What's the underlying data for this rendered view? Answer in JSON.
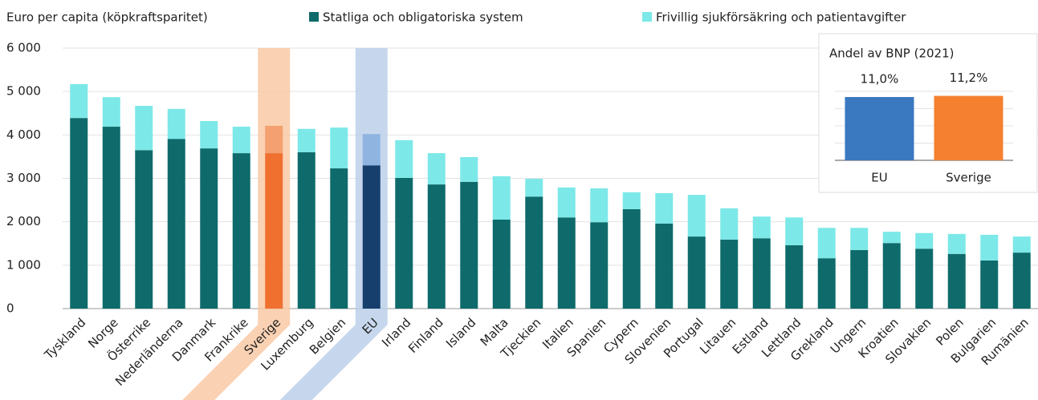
{
  "chart_data": [
    {
      "type": "stacked_bar",
      "ylabel": "Euro per capita (köpkraftsparitet)",
      "categories": [
        "Tyskland",
        "Norge",
        "Österrike",
        "Nederländerna",
        "Danmark",
        "Frankrike",
        "Sverige",
        "Luxemburg",
        "Belgien",
        "EU",
        "Irland",
        "Finland",
        "Island",
        "Malta",
        "Tjeckien",
        "Italien",
        "Spanien",
        "Cypern",
        "Slovenien",
        "Portugal",
        "Litauen",
        "Estland",
        "Lettland",
        "Grekland",
        "Ungern",
        "Kroatien",
        "Slovakien",
        "Polen",
        "Bulgarien",
        "Rumänien"
      ],
      "series": [
        {
          "name": "Statliga och obligatoriska system",
          "color": "#0f6b6b",
          "values": [
            4390,
            4190,
            3650,
            3910,
            3690,
            3580,
            3580,
            3600,
            3230,
            3300,
            3010,
            2860,
            2920,
            2050,
            2580,
            2100,
            1990,
            2290,
            1960,
            1660,
            1590,
            1620,
            1460,
            1160,
            1350,
            1510,
            1380,
            1260,
            1110,
            1290
          ]
        },
        {
          "name": "Frivillig sjukförsäkring och patientavgifter",
          "color": "#7de8e8",
          "values": [
            780,
            680,
            1020,
            690,
            630,
            610,
            630,
            540,
            940,
            720,
            870,
            720,
            570,
            1000,
            410,
            690,
            780,
            390,
            700,
            960,
            720,
            500,
            640,
            700,
            510,
            260,
            360,
            460,
            590,
            370
          ]
        }
      ],
      "highlights": [
        {
          "category": "Sverige",
          "colors": [
            "#f07030",
            "#f4a070"
          ],
          "band_color": "#f9c9a6"
        },
        {
          "category": "EU",
          "colors": [
            "#173f6e",
            "#8fb4e0"
          ],
          "band_color": "#bcd0ea"
        }
      ],
      "ylim": [
        0,
        6000
      ],
      "yticks": [
        0,
        {
          "value": 1000,
          "label": "1 000"
        },
        {
          "value": 2000,
          "label": "2 000"
        },
        {
          "value": 3000,
          "label": "3 000"
        },
        {
          "value": 4000,
          "label": "4 000"
        },
        {
          "value": 5000,
          "label": "5 000"
        },
        {
          "value": 6000,
          "label": "6 000"
        }
      ],
      "grid": true
    },
    {
      "type": "bar",
      "title": "Andel av BNP (2021)",
      "categories": [
        "EU",
        "Sverige"
      ],
      "values": [
        11.0,
        11.2
      ],
      "value_labels": [
        "11,0%",
        "11,2%"
      ],
      "colors": [
        "#3a78c0",
        "#f58030"
      ],
      "ylim": [
        0,
        14
      ],
      "yticks": [
        3,
        6,
        9,
        12
      ],
      "grid": true
    }
  ]
}
